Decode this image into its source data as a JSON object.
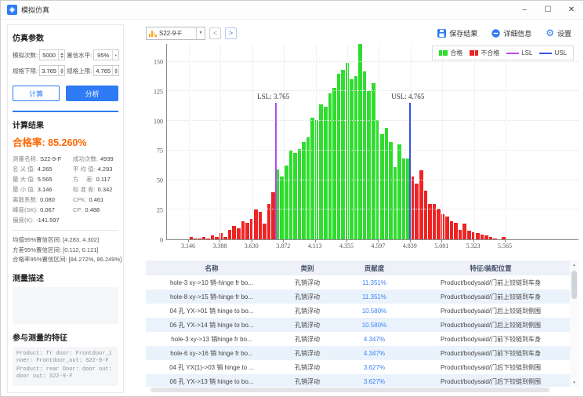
{
  "window": {
    "title": "模拟仿真",
    "controls": {
      "minimize": "–",
      "maximize": "☐",
      "close": "✕"
    }
  },
  "sidebar": {
    "params": {
      "title": "仿真参数",
      "fields": [
        {
          "label": "模拟次数:",
          "value": "5000",
          "control": "spinner"
        },
        {
          "label": "置信水平:",
          "value": "95%",
          "control": "select"
        },
        {
          "label": "规格下限:",
          "value": "3.765",
          "control": "spinner"
        },
        {
          "label": "规格上限:",
          "value": "4.765",
          "control": "spinner"
        }
      ],
      "calc_button": "计算",
      "analyze_button": "分析"
    },
    "results": {
      "title": "计算结果",
      "pass_rate_label": "合格率:",
      "pass_rate_value": "85.260%",
      "pass_rate_color": "#ff6600",
      "stats_left": [
        {
          "label": "测量名称:",
          "value": "S22-9-F"
        },
        {
          "label": "名 义 值:",
          "value": "4.265"
        },
        {
          "label": "最 大 值:",
          "value": "5.565"
        },
        {
          "label": "最 小 值:",
          "value": "3.146"
        },
        {
          "label": "离散系数:",
          "value": "0.080"
        },
        {
          "label": "峰度(SK):",
          "value": "0.067"
        },
        {
          "label": "偏度(K):",
          "value": "-141.597"
        }
      ],
      "stats_right": [
        {
          "label": "成功次数:",
          "value": "4939"
        },
        {
          "label": "平 均 值:",
          "value": "4.293"
        },
        {
          "label": "方　 差:",
          "value": "0.117"
        },
        {
          "label": "标 准 差:",
          "value": "0.342"
        },
        {
          "label": "CPK:",
          "value": "0.461"
        },
        {
          "label": "CP:",
          "value": "0.488"
        }
      ],
      "intervals": [
        "均值95%置信区间: [4.283, 4.302]",
        "方差95%置信区间: [0.112, 0.121]",
        "合格率95%置信区间: [84.272%, 86.249%]"
      ]
    },
    "description": {
      "title": "测量描述",
      "content": ""
    },
    "features": {
      "title": "参与测量的特征",
      "lines": [
        "Product: fr door: Frontdoor_inner: Frontdoor_out: S22-9-F",
        "Product: rear Door: door out: door out: S22-9-F"
      ]
    }
  },
  "toolbar": {
    "dataset_select": "S22-9-F",
    "prev": "<",
    "next": ">",
    "buttons": [
      {
        "label": "保存结果",
        "icon": "save-icon"
      },
      {
        "label": "详细信息",
        "icon": "info-icon"
      },
      {
        "label": "设置",
        "icon": "gear-icon"
      }
    ],
    "icon_color": "#2f7bf5"
  },
  "chart_data": {
    "type": "bar",
    "title": "",
    "xlabel": "",
    "ylabel": "",
    "x_ticks": [
      "3.146",
      "3.388",
      "3.630",
      "3.872",
      "4.113",
      "4.355",
      "4.597",
      "4.839",
      "5.081",
      "5.323",
      "5.565"
    ],
    "y_ticks": [
      0,
      25,
      50,
      75,
      100,
      125,
      150
    ],
    "xlim": [
      3.146,
      5.565
    ],
    "ylim": [
      0,
      165
    ],
    "bin_start": 3.146,
    "bin_width": 0.0331,
    "values": [
      2,
      1,
      1,
      2,
      1,
      3,
      2,
      5,
      2,
      8,
      11,
      9,
      15,
      14,
      17,
      25,
      23,
      13,
      30,
      40,
      59,
      53,
      62,
      75,
      73,
      76,
      82,
      86,
      103,
      101,
      114,
      112,
      123,
      128,
      140,
      143,
      149,
      135,
      138,
      165,
      142,
      125,
      132,
      101,
      89,
      94,
      82,
      61,
      80,
      68,
      68,
      53,
      47,
      58,
      41,
      30,
      30,
      26,
      21,
      19,
      15,
      14,
      8,
      13,
      7,
      6,
      5,
      4,
      3,
      2,
      1,
      0,
      2
    ],
    "green_range": [
      20,
      50
    ],
    "lsl": 3.765,
    "usl": 4.765,
    "lsl_label": "LSL:  3.765",
    "usl_label": "USL:  4.765",
    "spec_line_height": 115,
    "grid": true,
    "legend_position": "top-right",
    "legend": [
      {
        "label": "合格",
        "color": "#2fdd2f",
        "swatch": "box"
      },
      {
        "label": "不合格",
        "color": "#ee2424",
        "swatch": "box"
      },
      {
        "label": "LSL",
        "color": "#b04cf0",
        "swatch": "line"
      },
      {
        "label": "USL",
        "color": "#3b52e6",
        "swatch": "line"
      }
    ],
    "colors": {
      "pass": "#2fdd2f",
      "fail": "#ee2424",
      "lsl": "#b04cf0",
      "usl": "#3b52e6"
    }
  },
  "table": {
    "headers": [
      "名称",
      "类别",
      "贡献度",
      "特征/装配位置"
    ],
    "rows": [
      {
        "name": "hole-3 xy->10 销-hinge fr bo...",
        "category": "孔销浮动",
        "contribution": "11.351%",
        "location": "Product/bodysaid/门前上铰链到车身"
      },
      {
        "name": "hole-8 xy->15 销-hinge fr bo...",
        "category": "孔销浮动",
        "contribution": "11.351%",
        "location": "Product/bodysaid/门前上铰链到车身"
      },
      {
        "name": "04 孔 YX->01 销 hinge to bo...",
        "category": "孔销浮动",
        "contribution": "10.580%",
        "location": "Product/bodysaid/门后上铰链到侧围"
      },
      {
        "name": "06 孔 YX->14 销 hinge to bo...",
        "category": "孔销浮动",
        "contribution": "10.580%",
        "location": "Product/bodysaid/门后上铰链到侧围"
      },
      {
        "name": "hole-3 xy->13 销hinge fr bo...",
        "category": "孔销浮动",
        "contribution": "4.347%",
        "location": "Product/bodysaid/门前下铰链到车身"
      },
      {
        "name": "hole-6 xy->16 销 hinge fr bo...",
        "category": "孔销浮动",
        "contribution": "4.347%",
        "location": "Product/bodysaid/门前下铰链到车身"
      },
      {
        "name": "04 孔 YX(1)->03 销 hinge to ...",
        "category": "孔销浮动",
        "contribution": "3.627%",
        "location": "Product/bodysaid/门后下铰链到侧围"
      },
      {
        "name": "06 孔 YX->13 销 hinge to bo...",
        "category": "孔销浮动",
        "contribution": "3.627%",
        "location": "Product/bodysaid/门后下铰链到侧围"
      }
    ]
  }
}
